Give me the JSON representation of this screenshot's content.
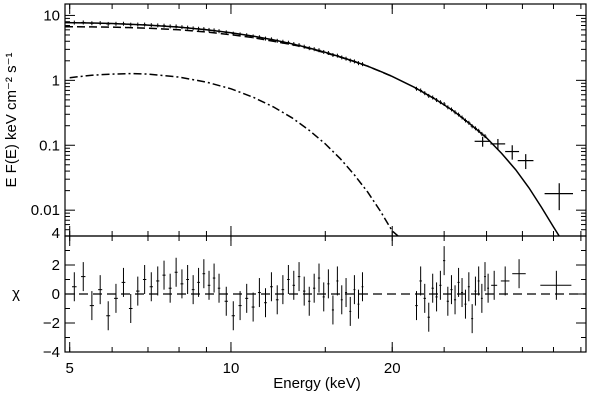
{
  "chart_data": {
    "type": "scatter",
    "x": {
      "label": "Energy (keV)",
      "scale": "log",
      "range": [
        4.9,
        46
      ],
      "ticks": [
        {
          "value": 5,
          "label": "5"
        },
        {
          "value": 10,
          "label": "10"
        },
        {
          "value": 20,
          "label": "20"
        }
      ],
      "minor_ticks": [
        6,
        7,
        8,
        9,
        30,
        40
      ]
    },
    "top_panel": {
      "ylabel": "E F(E) keV  cm⁻² s⁻¹",
      "yscale": "log",
      "ylim": [
        0.004,
        15
      ],
      "yticks": [
        {
          "value": 0.01,
          "label": "0.01"
        },
        {
          "value": 0.1,
          "label": "0.1"
        },
        {
          "value": 1,
          "label": "1"
        },
        {
          "value": 10,
          "label": "10"
        }
      ],
      "corner_tick_label": "4",
      "total_model": [
        [
          4.9,
          7.75
        ],
        [
          5.5,
          7.65
        ],
        [
          6,
          7.5
        ],
        [
          7,
          7.1
        ],
        [
          8,
          6.6
        ],
        [
          9,
          6.0
        ],
        [
          10,
          5.4
        ],
        [
          11,
          4.8
        ],
        [
          12,
          4.2
        ],
        [
          13,
          3.65
        ],
        [
          14,
          3.15
        ],
        [
          15,
          2.7
        ],
        [
          16,
          2.3
        ],
        [
          17,
          1.95
        ],
        [
          18,
          1.65
        ],
        [
          19,
          1.38
        ],
        [
          20,
          1.15
        ],
        [
          22,
          0.78
        ],
        [
          24,
          0.52
        ],
        [
          26,
          0.34
        ],
        [
          28,
          0.21
        ],
        [
          30,
          0.13
        ],
        [
          32,
          0.075
        ],
        [
          34,
          0.042
        ],
        [
          36,
          0.022
        ],
        [
          38,
          0.011
        ],
        [
          40,
          0.0055
        ],
        [
          41,
          0.004
        ]
      ],
      "components": [
        {
          "style": "dashed",
          "points": [
            [
              4.9,
              6.7
            ],
            [
              5.5,
              6.65
            ],
            [
              6,
              6.6
            ],
            [
              7,
              6.35
            ],
            [
              8,
              6.0
            ],
            [
              9,
              5.55
            ],
            [
              10,
              5.05
            ],
            [
              11,
              4.55
            ],
            [
              12,
              4.0
            ],
            [
              13,
              3.55
            ],
            [
              14,
              3.1
            ],
            [
              15,
              2.65
            ],
            [
              16,
              2.28
            ],
            [
              17,
              1.95
            ],
            [
              18,
              1.65
            ],
            [
              20,
              1.15
            ]
          ]
        },
        {
          "style": "dash-dot",
          "points": [
            [
              5,
              1.1
            ],
            [
              5.5,
              1.2
            ],
            [
              6,
              1.25
            ],
            [
              6.5,
              1.27
            ],
            [
              7,
              1.25
            ],
            [
              8,
              1.12
            ],
            [
              9,
              0.94
            ],
            [
              10,
              0.74
            ],
            [
              11,
              0.55
            ],
            [
              12,
              0.39
            ],
            [
              13,
              0.265
            ],
            [
              14,
              0.17
            ],
            [
              15,
              0.105
            ],
            [
              16,
              0.062
            ],
            [
              17,
              0.035
            ],
            [
              18,
              0.019
            ],
            [
              19,
              0.0097
            ],
            [
              20,
              0.0048
            ],
            [
              20.5,
              0.004
            ]
          ]
        }
      ],
      "data": [
        {
          "x": 29.5,
          "y": 0.115,
          "xerr": 1.0,
          "yerr": 0.02
        },
        {
          "x": 31.5,
          "y": 0.105,
          "xerr": 1.0,
          "yerr": 0.02
        },
        {
          "x": 33.5,
          "y": 0.08,
          "xerr": 1.0,
          "yerr": 0.02
        },
        {
          "x": 35.5,
          "y": 0.058,
          "xerr": 1.2,
          "yerr": 0.015
        },
        {
          "x": 41,
          "y": 0.018,
          "xerr": 2.5,
          "yerr": 0.008
        }
      ]
    },
    "bottom_panel": {
      "ylabel": "χ",
      "ylim": [
        -4,
        4
      ],
      "yticks": [
        {
          "value": -4,
          "label": "−4"
        },
        {
          "value": -2,
          "label": "−2"
        },
        {
          "value": 0,
          "label": "0"
        },
        {
          "value": 2,
          "label": "2"
        }
      ],
      "reference_line": 0,
      "data": [
        {
          "x": 5.1,
          "y": 0.5,
          "xerr": 0.05,
          "yerr": 1
        },
        {
          "x": 5.3,
          "y": 1.2,
          "xerr": 0.05,
          "yerr": 1
        },
        {
          "x": 5.5,
          "y": -0.8,
          "xerr": 0.05,
          "yerr": 1
        },
        {
          "x": 5.7,
          "y": 0.3,
          "xerr": 0.05,
          "yerr": 1
        },
        {
          "x": 5.9,
          "y": -1.5,
          "xerr": 0.05,
          "yerr": 1
        },
        {
          "x": 6.1,
          "y": -0.3,
          "xerr": 0.05,
          "yerr": 1
        },
        {
          "x": 6.3,
          "y": 0.8,
          "xerr": 0.05,
          "yerr": 1
        },
        {
          "x": 6.5,
          "y": -1.0,
          "xerr": 0.05,
          "yerr": 1
        },
        {
          "x": 6.7,
          "y": 0.2,
          "xerr": 0.05,
          "yerr": 1
        },
        {
          "x": 6.9,
          "y": 1.0,
          "xerr": 0.05,
          "yerr": 1
        },
        {
          "x": 7.1,
          "y": 0.5,
          "xerr": 0.05,
          "yerr": 1
        },
        {
          "x": 7.3,
          "y": 0.9,
          "xerr": 0.05,
          "yerr": 1
        },
        {
          "x": 7.5,
          "y": 1.3,
          "xerr": 0.05,
          "yerr": 1
        },
        {
          "x": 7.7,
          "y": 0.4,
          "xerr": 0.05,
          "yerr": 1
        },
        {
          "x": 7.9,
          "y": 1.5,
          "xerr": 0.05,
          "yerr": 1
        },
        {
          "x": 8.1,
          "y": 0.7,
          "xerr": 0.05,
          "yerr": 1
        },
        {
          "x": 8.3,
          "y": 1.0,
          "xerr": 0.05,
          "yerr": 1
        },
        {
          "x": 8.5,
          "y": 0.3,
          "xerr": 0.05,
          "yerr": 1
        },
        {
          "x": 8.7,
          "y": 0.8,
          "xerr": 0.05,
          "yerr": 1
        },
        {
          "x": 8.9,
          "y": 1.4,
          "xerr": 0.05,
          "yerr": 1
        },
        {
          "x": 9.1,
          "y": 0.6,
          "xerr": 0.05,
          "yerr": 1
        },
        {
          "x": 9.3,
          "y": 1.1,
          "xerr": 0.05,
          "yerr": 1
        },
        {
          "x": 9.5,
          "y": 0.4,
          "xerr": 0.05,
          "yerr": 1
        },
        {
          "x": 9.8,
          "y": -0.5,
          "xerr": 0.07,
          "yerr": 1
        },
        {
          "x": 10.1,
          "y": -1.5,
          "xerr": 0.07,
          "yerr": 1
        },
        {
          "x": 10.4,
          "y": -0.8,
          "xerr": 0.07,
          "yerr": 1
        },
        {
          "x": 10.7,
          "y": -0.3,
          "xerr": 0.07,
          "yerr": 1
        },
        {
          "x": 11.0,
          "y": -0.9,
          "xerr": 0.07,
          "yerr": 1
        },
        {
          "x": 11.3,
          "y": 0.1,
          "xerr": 0.07,
          "yerr": 1
        },
        {
          "x": 11.6,
          "y": -0.6,
          "xerr": 0.07,
          "yerr": 1
        },
        {
          "x": 11.9,
          "y": 0.5,
          "xerr": 0.07,
          "yerr": 1
        },
        {
          "x": 12.2,
          "y": -0.4,
          "xerr": 0.07,
          "yerr": 1
        },
        {
          "x": 12.5,
          "y": 0.3,
          "xerr": 0.07,
          "yerr": 1
        },
        {
          "x": 12.8,
          "y": 1.0,
          "xerr": 0.07,
          "yerr": 1
        },
        {
          "x": 13.1,
          "y": 0.6,
          "xerr": 0.07,
          "yerr": 1
        },
        {
          "x": 13.4,
          "y": 1.2,
          "xerr": 0.07,
          "yerr": 1
        },
        {
          "x": 13.7,
          "y": 0.2,
          "xerr": 0.07,
          "yerr": 1
        },
        {
          "x": 14.0,
          "y": -0.5,
          "xerr": 0.07,
          "yerr": 1
        },
        {
          "x": 14.3,
          "y": 0.4,
          "xerr": 0.07,
          "yerr": 1
        },
        {
          "x": 14.6,
          "y": 1.1,
          "xerr": 0.07,
          "yerr": 1
        },
        {
          "x": 14.9,
          "y": -0.2,
          "xerr": 0.07,
          "yerr": 1
        },
        {
          "x": 15.2,
          "y": 0.7,
          "xerr": 0.07,
          "yerr": 1
        },
        {
          "x": 15.5,
          "y": -1.1,
          "xerr": 0.07,
          "yerr": 1
        },
        {
          "x": 15.8,
          "y": 0.9,
          "xerr": 0.07,
          "yerr": 1
        },
        {
          "x": 16.1,
          "y": -0.4,
          "xerr": 0.07,
          "yerr": 1
        },
        {
          "x": 16.4,
          "y": 0.1,
          "xerr": 0.07,
          "yerr": 1
        },
        {
          "x": 16.7,
          "y": -1.2,
          "xerr": 0.07,
          "yerr": 1
        },
        {
          "x": 17.0,
          "y": 0.3,
          "xerr": 0.07,
          "yerr": 1
        },
        {
          "x": 17.3,
          "y": -0.7,
          "xerr": 0.07,
          "yerr": 1
        },
        {
          "x": 17.6,
          "y": 0.5,
          "xerr": 0.07,
          "yerr": 1
        },
        {
          "x": 22.2,
          "y": -0.8,
          "xerr": 0.12,
          "yerr": 1
        },
        {
          "x": 22.6,
          "y": 0.9,
          "xerr": 0.12,
          "yerr": 1
        },
        {
          "x": 23.0,
          "y": -0.3,
          "xerr": 0.12,
          "yerr": 1
        },
        {
          "x": 23.4,
          "y": -1.6,
          "xerr": 0.12,
          "yerr": 1
        },
        {
          "x": 23.8,
          "y": 0.4,
          "xerr": 0.12,
          "yerr": 1
        },
        {
          "x": 24.2,
          "y": -0.2,
          "xerr": 0.12,
          "yerr": 1
        },
        {
          "x": 24.6,
          "y": 0.6,
          "xerr": 0.12,
          "yerr": 1
        },
        {
          "x": 25.0,
          "y": 2.3,
          "xerr": 0.12,
          "yerr": 1
        },
        {
          "x": 25.4,
          "y": -0.5,
          "xerr": 0.12,
          "yerr": 1
        },
        {
          "x": 25.8,
          "y": 0.3,
          "xerr": 0.12,
          "yerr": 1
        },
        {
          "x": 26.2,
          "y": -0.4,
          "xerr": 0.12,
          "yerr": 1
        },
        {
          "x": 26.6,
          "y": 0.8,
          "xerr": 0.12,
          "yerr": 1
        },
        {
          "x": 27.0,
          "y": 0.1,
          "xerr": 0.12,
          "yerr": 1
        },
        {
          "x": 27.4,
          "y": -0.7,
          "xerr": 0.12,
          "yerr": 1
        },
        {
          "x": 27.8,
          "y": 0.5,
          "xerr": 0.12,
          "yerr": 1
        },
        {
          "x": 28.2,
          "y": -1.7,
          "xerr": 0.12,
          "yerr": 1
        },
        {
          "x": 28.6,
          "y": 0.2,
          "xerr": 0.12,
          "yerr": 1
        },
        {
          "x": 29.0,
          "y": 0.9,
          "xerr": 0.12,
          "yerr": 1
        },
        {
          "x": 29.4,
          "y": -0.3,
          "xerr": 0.12,
          "yerr": 1
        },
        {
          "x": 29.8,
          "y": 1.2,
          "xerr": 0.12,
          "yerr": 1
        },
        {
          "x": 30.2,
          "y": 0.4,
          "xerr": 0.12,
          "yerr": 1
        },
        {
          "x": 31.0,
          "y": 0.6,
          "xerr": 0.4,
          "yerr": 1
        },
        {
          "x": 32.5,
          "y": 0.9,
          "xerr": 0.6,
          "yerr": 1
        },
        {
          "x": 34.5,
          "y": 1.4,
          "xerr": 1.0,
          "yerr": 1
        },
        {
          "x": 40.5,
          "y": 0.6,
          "xerr": 2.7,
          "yerr": 1
        }
      ]
    }
  }
}
